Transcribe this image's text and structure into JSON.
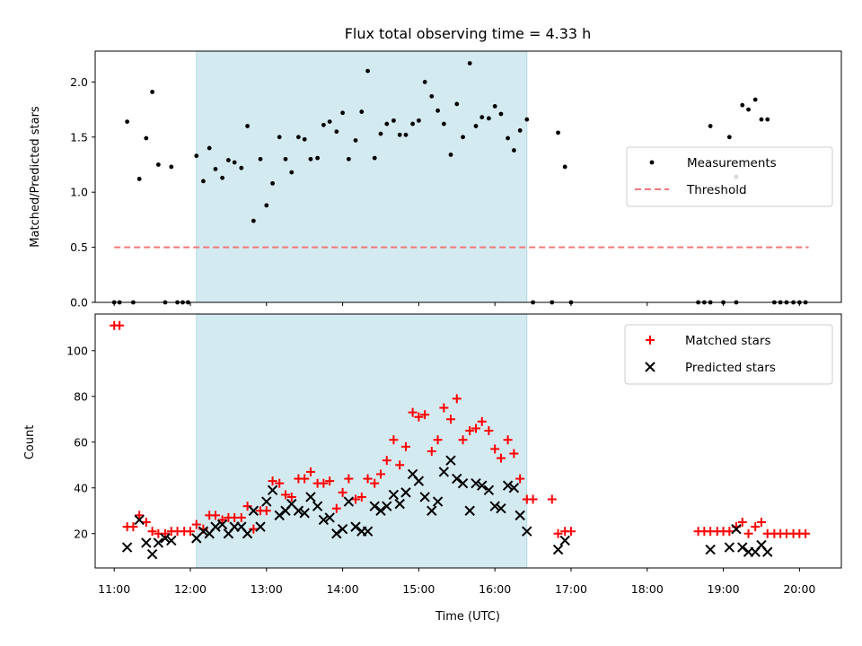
{
  "chart_data": [
    {
      "type": "scatter",
      "title": "Flux total observing time = 4.33 h",
      "xlabel": "",
      "ylabel": "Matched/Predicted stars",
      "xlim": [
        10.75,
        20.55
      ],
      "ylim": [
        0.0,
        2.28
      ],
      "yticks": [
        0.0,
        0.5,
        1.0,
        1.5,
        2.0
      ],
      "ytick_labels": [
        "0.0",
        "0.5",
        "1.0",
        "1.5",
        "2.0"
      ],
      "shaded_span": [
        12.08,
        16.42
      ],
      "shaded_color": "#d4eaf1",
      "legend_position": "center-right",
      "series": [
        {
          "name": "Measurements",
          "marker": "dot",
          "color": "#000000",
          "points": [
            [
              11.0,
              0.0
            ],
            [
              11.07,
              0.0
            ],
            [
              11.17,
              1.64
            ],
            [
              11.25,
              0.0
            ],
            [
              11.33,
              1.12
            ],
            [
              11.42,
              1.49
            ],
            [
              11.5,
              1.91
            ],
            [
              11.58,
              1.25
            ],
            [
              11.67,
              0.0
            ],
            [
              11.75,
              1.23
            ],
            [
              11.83,
              0.0
            ],
            [
              11.9,
              0.0
            ],
            [
              11.97,
              0.0
            ],
            [
              12.08,
              1.33
            ],
            [
              12.17,
              1.1
            ],
            [
              12.25,
              1.4
            ],
            [
              12.33,
              1.21
            ],
            [
              12.42,
              1.13
            ],
            [
              12.5,
              1.29
            ],
            [
              12.58,
              1.27
            ],
            [
              12.67,
              1.22
            ],
            [
              12.75,
              1.6
            ],
            [
              12.83,
              0.74
            ],
            [
              12.92,
              1.3
            ],
            [
              13.0,
              0.88
            ],
            [
              13.08,
              1.08
            ],
            [
              13.17,
              1.5
            ],
            [
              13.25,
              1.3
            ],
            [
              13.33,
              1.18
            ],
            [
              13.42,
              1.5
            ],
            [
              13.5,
              1.48
            ],
            [
              13.58,
              1.3
            ],
            [
              13.67,
              1.31
            ],
            [
              13.75,
              1.61
            ],
            [
              13.83,
              1.64
            ],
            [
              13.92,
              1.55
            ],
            [
              14.0,
              1.72
            ],
            [
              14.08,
              1.3
            ],
            [
              14.17,
              1.47
            ],
            [
              14.25,
              1.73
            ],
            [
              14.33,
              2.1
            ],
            [
              14.42,
              1.31
            ],
            [
              14.5,
              1.53
            ],
            [
              14.58,
              1.62
            ],
            [
              14.67,
              1.65
            ],
            [
              14.75,
              1.52
            ],
            [
              14.83,
              1.52
            ],
            [
              14.92,
              1.62
            ],
            [
              15.0,
              1.65
            ],
            [
              15.08,
              2.0
            ],
            [
              15.17,
              1.87
            ],
            [
              15.25,
              1.74
            ],
            [
              15.33,
              1.62
            ],
            [
              15.42,
              1.34
            ],
            [
              15.5,
              1.8
            ],
            [
              15.58,
              1.5
            ],
            [
              15.67,
              2.17
            ],
            [
              15.75,
              1.6
            ],
            [
              15.83,
              1.68
            ],
            [
              15.92,
              1.67
            ],
            [
              16.0,
              1.78
            ],
            [
              16.08,
              1.71
            ],
            [
              16.17,
              1.49
            ],
            [
              16.25,
              1.38
            ],
            [
              16.33,
              1.56
            ],
            [
              16.42,
              1.66
            ],
            [
              16.5,
              0.0
            ],
            [
              16.75,
              0.0
            ],
            [
              16.83,
              1.54
            ],
            [
              16.92,
              1.23
            ],
            [
              17.0,
              0.0
            ],
            [
              18.67,
              0.0
            ],
            [
              18.75,
              0.0
            ],
            [
              18.83,
              0.0
            ],
            [
              18.83,
              1.6
            ],
            [
              19.0,
              0.0
            ],
            [
              19.08,
              1.5
            ],
            [
              19.17,
              0.0
            ],
            [
              19.17,
              1.14
            ],
            [
              19.25,
              1.79
            ],
            [
              19.33,
              1.75
            ],
            [
              19.42,
              1.84
            ],
            [
              19.5,
              1.66
            ],
            [
              19.58,
              1.66
            ],
            [
              19.67,
              0.0
            ],
            [
              19.75,
              0.0
            ],
            [
              19.83,
              0.0
            ],
            [
              19.92,
              0.0
            ],
            [
              20.0,
              0.0
            ],
            [
              20.08,
              0.0
            ]
          ]
        },
        {
          "name": "Threshold",
          "marker": "dashed-line",
          "color": "#f07878",
          "x": [
            11.0,
            20.12
          ],
          "y": [
            0.5,
            0.5
          ]
        }
      ]
    },
    {
      "type": "scatter",
      "title": "",
      "xlabel": "Time (UTC)",
      "ylabel": "Count",
      "xlim": [
        10.75,
        20.55
      ],
      "ylim": [
        5,
        116
      ],
      "xticks": [
        11,
        12,
        13,
        14,
        15,
        16,
        17,
        18,
        19,
        20
      ],
      "xtick_labels": [
        "11:00",
        "12:00",
        "13:00",
        "14:00",
        "15:00",
        "16:00",
        "17:00",
        "18:00",
        "19:00",
        "20:00"
      ],
      "yticks": [
        20,
        40,
        60,
        80,
        100
      ],
      "ytick_labels": [
        "20",
        "40",
        "60",
        "80",
        "100"
      ],
      "shaded_span": [
        12.08,
        16.42
      ],
      "shaded_color": "#d4eaf1",
      "legend_position": "top-right",
      "series": [
        {
          "name": "Matched stars",
          "marker": "plus",
          "color": "#ff0000",
          "points": [
            [
              11.0,
              111
            ],
            [
              11.07,
              111
            ],
            [
              11.17,
              23
            ],
            [
              11.25,
              23
            ],
            [
              11.33,
              28
            ],
            [
              11.42,
              25
            ],
            [
              11.5,
              21
            ],
            [
              11.58,
              20
            ],
            [
              11.67,
              20
            ],
            [
              11.75,
              21
            ],
            [
              11.83,
              21
            ],
            [
              11.92,
              21
            ],
            [
              12.0,
              21
            ],
            [
              12.08,
              24
            ],
            [
              12.17,
              22
            ],
            [
              12.25,
              28
            ],
            [
              12.33,
              28
            ],
            [
              12.42,
              26
            ],
            [
              12.5,
              27
            ],
            [
              12.58,
              27
            ],
            [
              12.67,
              27
            ],
            [
              12.75,
              32
            ],
            [
              12.83,
              22
            ],
            [
              12.92,
              30
            ],
            [
              13.0,
              30
            ],
            [
              13.08,
              43
            ],
            [
              13.17,
              42
            ],
            [
              13.25,
              37
            ],
            [
              13.33,
              36
            ],
            [
              13.42,
              44
            ],
            [
              13.5,
              44
            ],
            [
              13.58,
              47
            ],
            [
              13.67,
              42
            ],
            [
              13.75,
              42
            ],
            [
              13.83,
              43
            ],
            [
              13.92,
              31
            ],
            [
              14.0,
              38
            ],
            [
              14.08,
              44
            ],
            [
              14.17,
              35
            ],
            [
              14.25,
              36
            ],
            [
              14.33,
              44
            ],
            [
              14.42,
              42
            ],
            [
              14.5,
              46
            ],
            [
              14.58,
              52
            ],
            [
              14.67,
              61
            ],
            [
              14.75,
              50
            ],
            [
              14.83,
              58
            ],
            [
              14.92,
              73
            ],
            [
              15.0,
              71
            ],
            [
              15.08,
              72
            ],
            [
              15.17,
              56
            ],
            [
              15.25,
              61
            ],
            [
              15.33,
              75
            ],
            [
              15.42,
              70
            ],
            [
              15.5,
              79
            ],
            [
              15.58,
              61
            ],
            [
              15.67,
              65
            ],
            [
              15.75,
              66
            ],
            [
              15.83,
              69
            ],
            [
              15.92,
              65
            ],
            [
              16.0,
              57
            ],
            [
              16.08,
              53
            ],
            [
              16.17,
              61
            ],
            [
              16.25,
              55
            ],
            [
              16.33,
              44
            ],
            [
              16.42,
              35
            ],
            [
              16.5,
              35
            ],
            [
              16.75,
              35
            ],
            [
              16.83,
              20
            ],
            [
              16.92,
              21
            ],
            [
              17.0,
              21
            ],
            [
              18.67,
              21
            ],
            [
              18.75,
              21
            ],
            [
              18.83,
              21
            ],
            [
              18.92,
              21
            ],
            [
              19.0,
              21
            ],
            [
              19.08,
              21
            ],
            [
              19.17,
              23
            ],
            [
              19.25,
              25
            ],
            [
              19.33,
              20
            ],
            [
              19.42,
              23
            ],
            [
              19.5,
              25
            ],
            [
              19.58,
              20
            ],
            [
              19.67,
              20
            ],
            [
              19.75,
              20
            ],
            [
              19.83,
              20
            ],
            [
              19.92,
              20
            ],
            [
              20.0,
              20
            ],
            [
              20.08,
              20
            ]
          ]
        },
        {
          "name": "Predicted stars",
          "marker": "x",
          "color": "#000000",
          "points": [
            [
              11.17,
              14
            ],
            [
              11.33,
              26
            ],
            [
              11.42,
              16
            ],
            [
              11.5,
              11
            ],
            [
              11.58,
              16
            ],
            [
              11.67,
              18
            ],
            [
              11.75,
              17
            ],
            [
              12.08,
              18
            ],
            [
              12.17,
              21
            ],
            [
              12.25,
              20
            ],
            [
              12.33,
              23
            ],
            [
              12.42,
              24
            ],
            [
              12.5,
              20
            ],
            [
              12.58,
              23
            ],
            [
              12.67,
              23
            ],
            [
              12.75,
              20
            ],
            [
              12.83,
              30
            ],
            [
              12.92,
              23
            ],
            [
              13.0,
              34
            ],
            [
              13.08,
              39
            ],
            [
              13.17,
              28
            ],
            [
              13.25,
              30
            ],
            [
              13.33,
              33
            ],
            [
              13.42,
              30
            ],
            [
              13.5,
              29
            ],
            [
              13.58,
              36
            ],
            [
              13.67,
              32
            ],
            [
              13.75,
              26
            ],
            [
              13.83,
              27
            ],
            [
              13.92,
              20
            ],
            [
              14.0,
              22
            ],
            [
              14.08,
              34
            ],
            [
              14.17,
              23
            ],
            [
              14.25,
              21
            ],
            [
              14.33,
              21
            ],
            [
              14.42,
              32
            ],
            [
              14.5,
              30
            ],
            [
              14.58,
              32
            ],
            [
              14.67,
              37
            ],
            [
              14.75,
              33
            ],
            [
              14.83,
              38
            ],
            [
              14.92,
              46
            ],
            [
              15.0,
              43
            ],
            [
              15.08,
              36
            ],
            [
              15.17,
              30
            ],
            [
              15.25,
              34
            ],
            [
              15.33,
              47
            ],
            [
              15.42,
              52
            ],
            [
              15.5,
              44
            ],
            [
              15.58,
              42
            ],
            [
              15.67,
              30
            ],
            [
              15.75,
              42
            ],
            [
              15.83,
              41
            ],
            [
              15.92,
              39
            ],
            [
              16.0,
              32
            ],
            [
              16.08,
              31
            ],
            [
              16.17,
              41
            ],
            [
              16.25,
              40
            ],
            [
              16.33,
              28
            ],
            [
              16.42,
              21
            ],
            [
              16.83,
              13
            ],
            [
              16.92,
              17
            ],
            [
              18.83,
              13
            ],
            [
              19.08,
              14
            ],
            [
              19.17,
              22
            ],
            [
              19.25,
              14
            ],
            [
              19.33,
              12
            ],
            [
              19.42,
              12
            ],
            [
              19.5,
              15
            ],
            [
              19.58,
              12
            ]
          ]
        }
      ]
    }
  ]
}
